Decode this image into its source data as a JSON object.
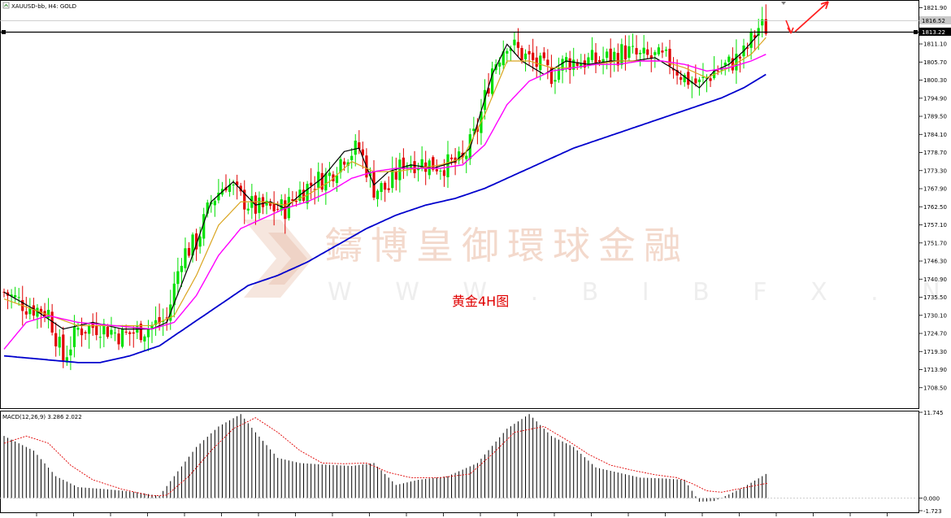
{
  "header": {
    "symbol": "XAUUSD-bb, H4: GOLD",
    "macd_label": "MACD(12,26,9) 3.286 2.022"
  },
  "watermark": {
    "brand": "鑄博皇御環球金融",
    "url": "W W W . B I B F X . N E T"
  },
  "annotation": "黄金4H图",
  "price_axis": {
    "ticks": [
      "1821.90",
      "1816.52",
      "1813.22",
      "1811.10",
      "1805.70",
      "1800.30",
      "1794.90",
      "1789.50",
      "1784.10",
      "1778.70",
      "1773.30",
      "1767.90",
      "1762.50",
      "1757.10",
      "1751.70",
      "1746.30",
      "1740.90",
      "1735.50",
      "1730.10",
      "1724.70",
      "1719.30",
      "1713.90",
      "1708.50"
    ],
    "current_price": "1816.52",
    "horizontal_line_price": "1813.22"
  },
  "macd_axis": {
    "ticks": [
      "11.745",
      "0.000",
      "-1.723"
    ]
  },
  "colors": {
    "bull": "#00e000",
    "bear": "#e00000",
    "ma_fast": "#000000",
    "ma_mid": "#daa520",
    "ma_slow": "#ff00ff",
    "ma_long": "#0000cd",
    "signal": "#e00000",
    "arrow": "#ff2020"
  },
  "chart_data": [
    {
      "type": "candlestick",
      "title": "XAUUSD-bb, H4: GOLD",
      "ylim": [
        1703.1,
        1823.0
      ],
      "close_anchors": [
        [
          0,
          1737
        ],
        [
          6,
          1733
        ],
        [
          12,
          1731
        ],
        [
          16,
          1717
        ],
        [
          20,
          1726
        ],
        [
          26,
          1727
        ],
        [
          32,
          1724
        ],
        [
          38,
          1726
        ],
        [
          44,
          1729
        ],
        [
          48,
          1748
        ],
        [
          52,
          1752
        ],
        [
          56,
          1764
        ],
        [
          60,
          1770
        ],
        [
          64,
          1765
        ],
        [
          68,
          1762
        ],
        [
          72,
          1762
        ],
        [
          76,
          1762
        ],
        [
          80,
          1767
        ],
        [
          84,
          1770
        ],
        [
          88,
          1772
        ],
        [
          92,
          1778
        ],
        [
          96,
          1780
        ],
        [
          100,
          1768
        ],
        [
          104,
          1768
        ],
        [
          108,
          1776
        ],
        [
          112,
          1776
        ],
        [
          116,
          1775
        ],
        [
          120,
          1775
        ],
        [
          124,
          1776
        ],
        [
          128,
          1786
        ],
        [
          132,
          1804
        ],
        [
          136,
          1812
        ],
        [
          140,
          1808
        ],
        [
          144,
          1805
        ],
        [
          148,
          1802
        ],
        [
          152,
          1806
        ],
        [
          156,
          1806
        ],
        [
          160,
          1806
        ],
        [
          164,
          1807
        ],
        [
          168,
          1809
        ],
        [
          172,
          1807
        ],
        [
          176,
          1807
        ],
        [
          180,
          1806
        ],
        [
          184,
          1801
        ],
        [
          188,
          1799
        ],
        [
          192,
          1803
        ],
        [
          196,
          1805
        ],
        [
          200,
          1808
        ],
        [
          204,
          1816
        ]
      ],
      "series": [
        {
          "name": "MA fast",
          "values": [
            [
              0,
              1737
            ],
            [
              8,
              1732
            ],
            [
              16,
              1726
            ],
            [
              24,
              1728
            ],
            [
              32,
              1726
            ],
            [
              40,
              1726
            ],
            [
              44,
              1728
            ],
            [
              50,
              1745
            ],
            [
              56,
              1764
            ],
            [
              62,
              1770
            ],
            [
              68,
              1763
            ],
            [
              72,
              1764
            ],
            [
              76,
              1762
            ],
            [
              80,
              1766
            ],
            [
              86,
              1771
            ],
            [
              92,
              1779
            ],
            [
              96,
              1780
            ],
            [
              100,
              1769
            ],
            [
              104,
              1773
            ],
            [
              110,
              1775
            ],
            [
              116,
              1774
            ],
            [
              122,
              1776
            ],
            [
              126,
              1780
            ],
            [
              132,
              1802
            ],
            [
              136,
              1811
            ],
            [
              140,
              1806
            ],
            [
              146,
              1802
            ],
            [
              152,
              1806
            ],
            [
              158,
              1805
            ],
            [
              164,
              1806
            ],
            [
              170,
              1806
            ],
            [
              176,
              1807
            ],
            [
              182,
              1803
            ],
            [
              188,
              1798
            ],
            [
              192,
              1803
            ],
            [
              196,
              1805
            ],
            [
              200,
              1809
            ],
            [
              204,
              1814
            ]
          ]
        },
        {
          "name": "MA mid",
          "values": [
            [
              0,
              1735
            ],
            [
              10,
              1731
            ],
            [
              20,
              1727
            ],
            [
              30,
              1727
            ],
            [
              40,
              1727
            ],
            [
              46,
              1730
            ],
            [
              52,
              1742
            ],
            [
              58,
              1757
            ],
            [
              64,
              1764
            ],
            [
              70,
              1764
            ],
            [
              76,
              1763
            ],
            [
              82,
              1766
            ],
            [
              88,
              1770
            ],
            [
              94,
              1776
            ],
            [
              100,
              1773
            ],
            [
              106,
              1773
            ],
            [
              112,
              1774
            ],
            [
              118,
              1775
            ],
            [
              124,
              1777
            ],
            [
              130,
              1790
            ],
            [
              136,
              1806
            ],
            [
              142,
              1806
            ],
            [
              148,
              1804
            ],
            [
              154,
              1804
            ],
            [
              160,
              1805
            ],
            [
              166,
              1806
            ],
            [
              172,
              1806
            ],
            [
              178,
              1806
            ],
            [
              184,
              1804
            ],
            [
              190,
              1801
            ],
            [
              196,
              1804
            ],
            [
              202,
              1808
            ],
            [
              206,
              1813
            ]
          ]
        },
        {
          "name": "MA slow",
          "values": [
            [
              0,
              1720
            ],
            [
              6,
              1728
            ],
            [
              12,
              1730
            ],
            [
              20,
              1728
            ],
            [
              30,
              1727
            ],
            [
              40,
              1726
            ],
            [
              46,
              1728
            ],
            [
              52,
              1736
            ],
            [
              58,
              1748
            ],
            [
              64,
              1756
            ],
            [
              70,
              1759
            ],
            [
              76,
              1762
            ],
            [
              82,
              1764
            ],
            [
              88,
              1767
            ],
            [
              94,
              1771
            ],
            [
              100,
              1773
            ],
            [
              106,
              1774
            ],
            [
              112,
              1774
            ],
            [
              118,
              1774
            ],
            [
              124,
              1775
            ],
            [
              130,
              1781
            ],
            [
              136,
              1793
            ],
            [
              142,
              1800
            ],
            [
              148,
              1803
            ],
            [
              154,
              1804
            ],
            [
              160,
              1805
            ],
            [
              166,
              1805
            ],
            [
              172,
              1806
            ],
            [
              178,
              1806
            ],
            [
              184,
              1805
            ],
            [
              190,
              1803
            ],
            [
              196,
              1804
            ],
            [
              202,
              1806
            ],
            [
              206,
              1808
            ]
          ]
        },
        {
          "name": "MA long",
          "values": [
            [
              0,
              1718
            ],
            [
              10,
              1717
            ],
            [
              20,
              1716
            ],
            [
              26,
              1716
            ],
            [
              34,
              1718
            ],
            [
              42,
              1721
            ],
            [
              50,
              1727
            ],
            [
              58,
              1733
            ],
            [
              66,
              1739
            ],
            [
              74,
              1742
            ],
            [
              82,
              1746
            ],
            [
              90,
              1751
            ],
            [
              98,
              1756
            ],
            [
              106,
              1760
            ],
            [
              114,
              1763
            ],
            [
              122,
              1765
            ],
            [
              130,
              1768
            ],
            [
              138,
              1772
            ],
            [
              146,
              1776
            ],
            [
              154,
              1780
            ],
            [
              162,
              1783
            ],
            [
              170,
              1786
            ],
            [
              178,
              1789
            ],
            [
              186,
              1792
            ],
            [
              194,
              1795
            ],
            [
              200,
              1798
            ],
            [
              206,
              1802
            ]
          ]
        }
      ]
    },
    {
      "type": "bar",
      "title": "MACD(12,26,9) 3.286 2.022",
      "ylim": [
        -1.723,
        11.745
      ],
      "histogram_anchors": [
        [
          0,
          8.5
        ],
        [
          8,
          6.5
        ],
        [
          14,
          3.0
        ],
        [
          20,
          1.5
        ],
        [
          28,
          1.2
        ],
        [
          36,
          0.8
        ],
        [
          42,
          0.3
        ],
        [
          46,
          3
        ],
        [
          52,
          7
        ],
        [
          58,
          9.8
        ],
        [
          64,
          11.5
        ],
        [
          68,
          9
        ],
        [
          74,
          5.5
        ],
        [
          80,
          4.8
        ],
        [
          86,
          4.6
        ],
        [
          94,
          4.4
        ],
        [
          100,
          4.8
        ],
        [
          106,
          1.8
        ],
        [
          112,
          2.5
        ],
        [
          120,
          3.0
        ],
        [
          128,
          4.8
        ],
        [
          136,
          9.5
        ],
        [
          142,
          11.5
        ],
        [
          148,
          8.5
        ],
        [
          154,
          7.0
        ],
        [
          160,
          4.2
        ],
        [
          166,
          3.5
        ],
        [
          172,
          2.8
        ],
        [
          178,
          2.7
        ],
        [
          184,
          2.5
        ],
        [
          188,
          -0.5
        ],
        [
          192,
          -0.4
        ],
        [
          196,
          0.5
        ],
        [
          200,
          1.5
        ],
        [
          206,
          3.3
        ]
      ],
      "signal_anchors": [
        [
          0,
          7.5
        ],
        [
          6,
          8.5
        ],
        [
          12,
          7.5
        ],
        [
          18,
          4.5
        ],
        [
          24,
          2.5
        ],
        [
          32,
          1.2
        ],
        [
          40,
          0.3
        ],
        [
          44,
          0.4
        ],
        [
          50,
          3.0
        ],
        [
          56,
          6.5
        ],
        [
          62,
          9.5
        ],
        [
          68,
          11.0
        ],
        [
          74,
          9.0
        ],
        [
          80,
          6.5
        ],
        [
          86,
          4.8
        ],
        [
          92,
          4.7
        ],
        [
          98,
          4.8
        ],
        [
          104,
          3.5
        ],
        [
          110,
          2.8
        ],
        [
          118,
          2.8
        ],
        [
          126,
          3.3
        ],
        [
          132,
          6.0
        ],
        [
          138,
          9.0
        ],
        [
          146,
          9.8
        ],
        [
          152,
          8.0
        ],
        [
          158,
          6.0
        ],
        [
          164,
          4.5
        ],
        [
          170,
          3.8
        ],
        [
          176,
          3.2
        ],
        [
          182,
          2.8
        ],
        [
          186,
          2.0
        ],
        [
          190,
          1.0
        ],
        [
          194,
          0.8
        ],
        [
          200,
          1.4
        ],
        [
          206,
          2.0
        ]
      ]
    }
  ]
}
